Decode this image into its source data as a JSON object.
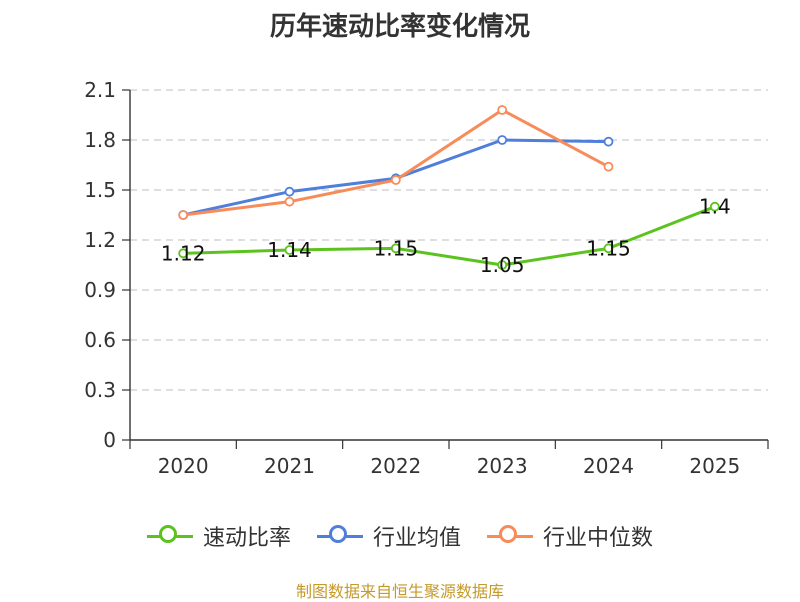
{
  "chart_data": {
    "type": "line",
    "title": "历年速动比率变化情况",
    "categories": [
      "2020",
      "2021",
      "2022",
      "2023",
      "2024",
      "2025"
    ],
    "ylim": [
      0,
      2.1
    ],
    "yticks": [
      "0",
      "0.3",
      "0.6",
      "0.9",
      "1.2",
      "1.5",
      "1.8",
      "2.1"
    ],
    "grid": true,
    "legend_position": "bottom",
    "series": [
      {
        "name": "速动比率",
        "color": "#5cc21f",
        "values": [
          1.12,
          1.14,
          1.15,
          1.05,
          1.15,
          1.4
        ],
        "labels": [
          "1.12",
          "1.14",
          "1.15",
          "1.05",
          "1.15",
          "1.4"
        ]
      },
      {
        "name": "行业均值",
        "color": "#4f7fdb",
        "values": [
          1.35,
          1.49,
          1.57,
          1.8,
          1.79,
          null
        ]
      },
      {
        "name": "行业中位数",
        "color": "#f78c5a",
        "values": [
          1.35,
          1.43,
          1.56,
          1.98,
          1.64,
          null
        ]
      }
    ]
  },
  "source": "制图数据来自恒生聚源数据库"
}
